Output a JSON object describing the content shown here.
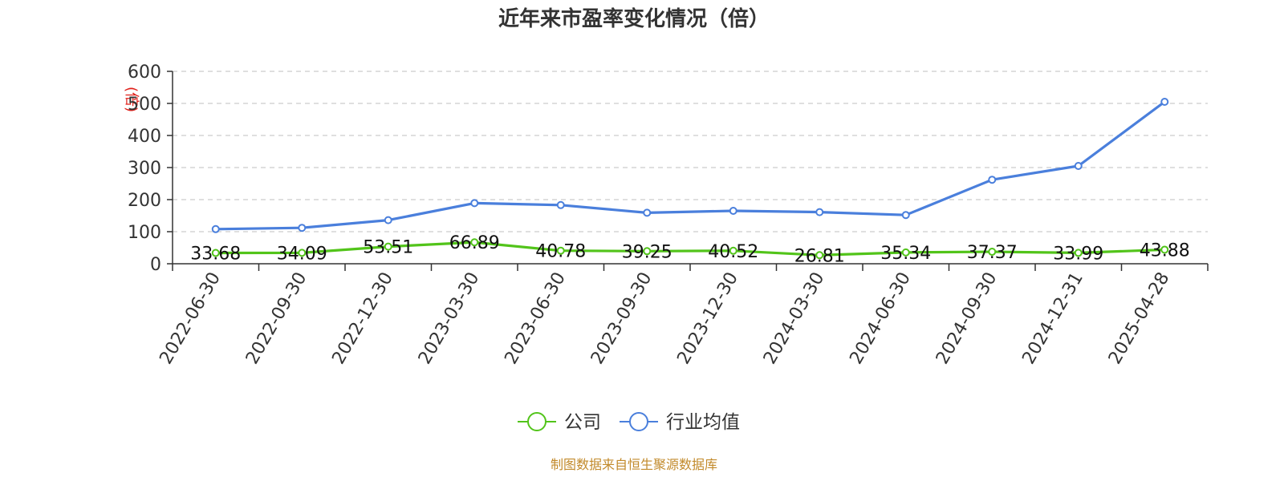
{
  "chart_data": {
    "type": "line",
    "title": "近年来市盈率变化情况（倍）",
    "ylabel": "(倍)",
    "xlabel": "",
    "ylim": [
      0,
      600
    ],
    "yticks": [
      0,
      100,
      200,
      300,
      400,
      500,
      600
    ],
    "grid": true,
    "legend_position": "bottom",
    "categories": [
      "2022-06-30",
      "2022-09-30",
      "2022-12-30",
      "2023-03-30",
      "2023-06-30",
      "2023-09-30",
      "2023-12-30",
      "2024-03-30",
      "2024-06-30",
      "2024-09-30",
      "2024-12-31",
      "2025-04-28"
    ],
    "series": [
      {
        "name": "公司",
        "color": "#52c41a",
        "values": [
          33.68,
          34.09,
          53.51,
          66.89,
          40.78,
          39.25,
          40.52,
          26.81,
          35.34,
          37.37,
          33.99,
          43.88
        ],
        "data_labels": [
          "33.68",
          "34.09",
          "53.51",
          "66.89",
          "40.78",
          "39.25",
          "40.52",
          "26.81",
          "35.34",
          "37.37",
          "33.99",
          "43.88"
        ]
      },
      {
        "name": "行业均值",
        "color": "#4a7fdc",
        "values": [
          108,
          112,
          136,
          189,
          183,
          159,
          165,
          161,
          152,
          262,
          305,
          505
        ]
      }
    ],
    "source": "制图数据来自恒生聚源数据库"
  }
}
